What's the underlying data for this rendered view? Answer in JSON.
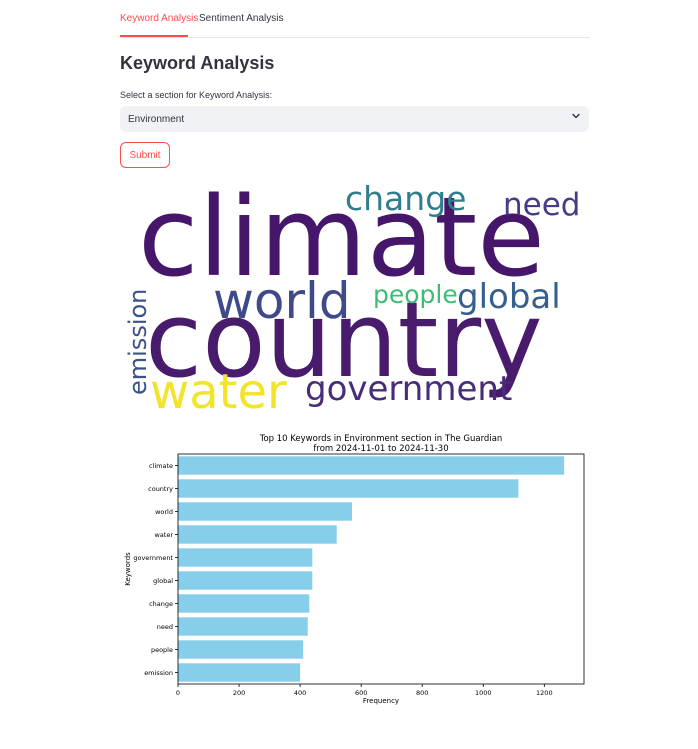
{
  "tabs": [
    {
      "label": "Keyword Analysis",
      "active": true
    },
    {
      "label": "Sentiment Analysis",
      "active": false
    }
  ],
  "page_title": "Keyword Analysis",
  "select": {
    "label": "Select a section for Keyword Analysis:",
    "value": "Environment"
  },
  "submit_label": "Submit",
  "accent_color": "#ff4b4b",
  "wordcloud": {
    "words": [
      {
        "text": "climate",
        "color": "#46166b"
      },
      {
        "text": "country",
        "color": "#481b6d"
      },
      {
        "text": "world",
        "color": "#3e4a89"
      },
      {
        "text": "water",
        "color": "#f2e42b"
      },
      {
        "text": "government",
        "color": "#472c7a"
      },
      {
        "text": "change",
        "color": "#2f7d8e"
      },
      {
        "text": "need",
        "color": "#433e85"
      },
      {
        "text": "global",
        "color": "#355f8d"
      },
      {
        "text": "people",
        "color": "#3fbc73"
      },
      {
        "text": "emission",
        "color": "#3a538b"
      }
    ]
  },
  "chart_data": {
    "type": "bar",
    "orientation": "horizontal",
    "title": "Top 10 Keywords in Environment section in The Guardian\nfrom 2024-11-01 to 2024-11-30",
    "title_lines": [
      "Top 10 Keywords in Environment section in The Guardian",
      "from 2024-11-01 to 2024-11-30"
    ],
    "xlabel": "Frequency",
    "ylabel": "Keywords",
    "categories": [
      "climate",
      "country",
      "world",
      "water",
      "government",
      "global",
      "change",
      "need",
      "people",
      "emission"
    ],
    "values": [
      1265,
      1115,
      570,
      520,
      440,
      440,
      430,
      425,
      410,
      400
    ],
    "xlim": [
      0,
      1330
    ],
    "xticks": [
      0,
      200,
      400,
      600,
      800,
      1000,
      1200
    ],
    "bar_color": "#87ceeb",
    "grid": false
  }
}
